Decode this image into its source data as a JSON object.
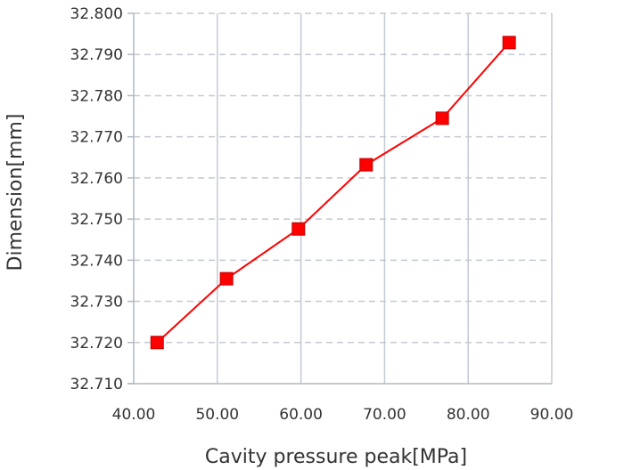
{
  "chart_data": {
    "type": "line",
    "title": "",
    "xlabel": "Cavity pressure peak[MPa]",
    "ylabel": "Dimension[mm]",
    "xlim": [
      40,
      90
    ],
    "ylim": [
      32.71,
      32.8
    ],
    "x_ticks": [
      "40.00",
      "50.00",
      "60.00",
      "70.00",
      "80.00",
      "90.00"
    ],
    "y_ticks": [
      "32.710",
      "32.720",
      "32.730",
      "32.740",
      "32.750",
      "32.760",
      "32.770",
      "32.780",
      "32.790",
      "32.800"
    ],
    "grid": {
      "x": "solid",
      "y": "dashed"
    },
    "legend": "none",
    "series": [
      {
        "color": "#ff0000",
        "marker": "square",
        "points": [
          {
            "x": 42.8,
            "y": 32.72
          },
          {
            "x": 51.1,
            "y": 32.7355
          },
          {
            "x": 59.7,
            "y": 32.7476
          },
          {
            "x": 67.8,
            "y": 32.7632
          },
          {
            "x": 76.9,
            "y": 32.7745
          },
          {
            "x": 84.9,
            "y": 32.7929
          }
        ]
      }
    ]
  }
}
